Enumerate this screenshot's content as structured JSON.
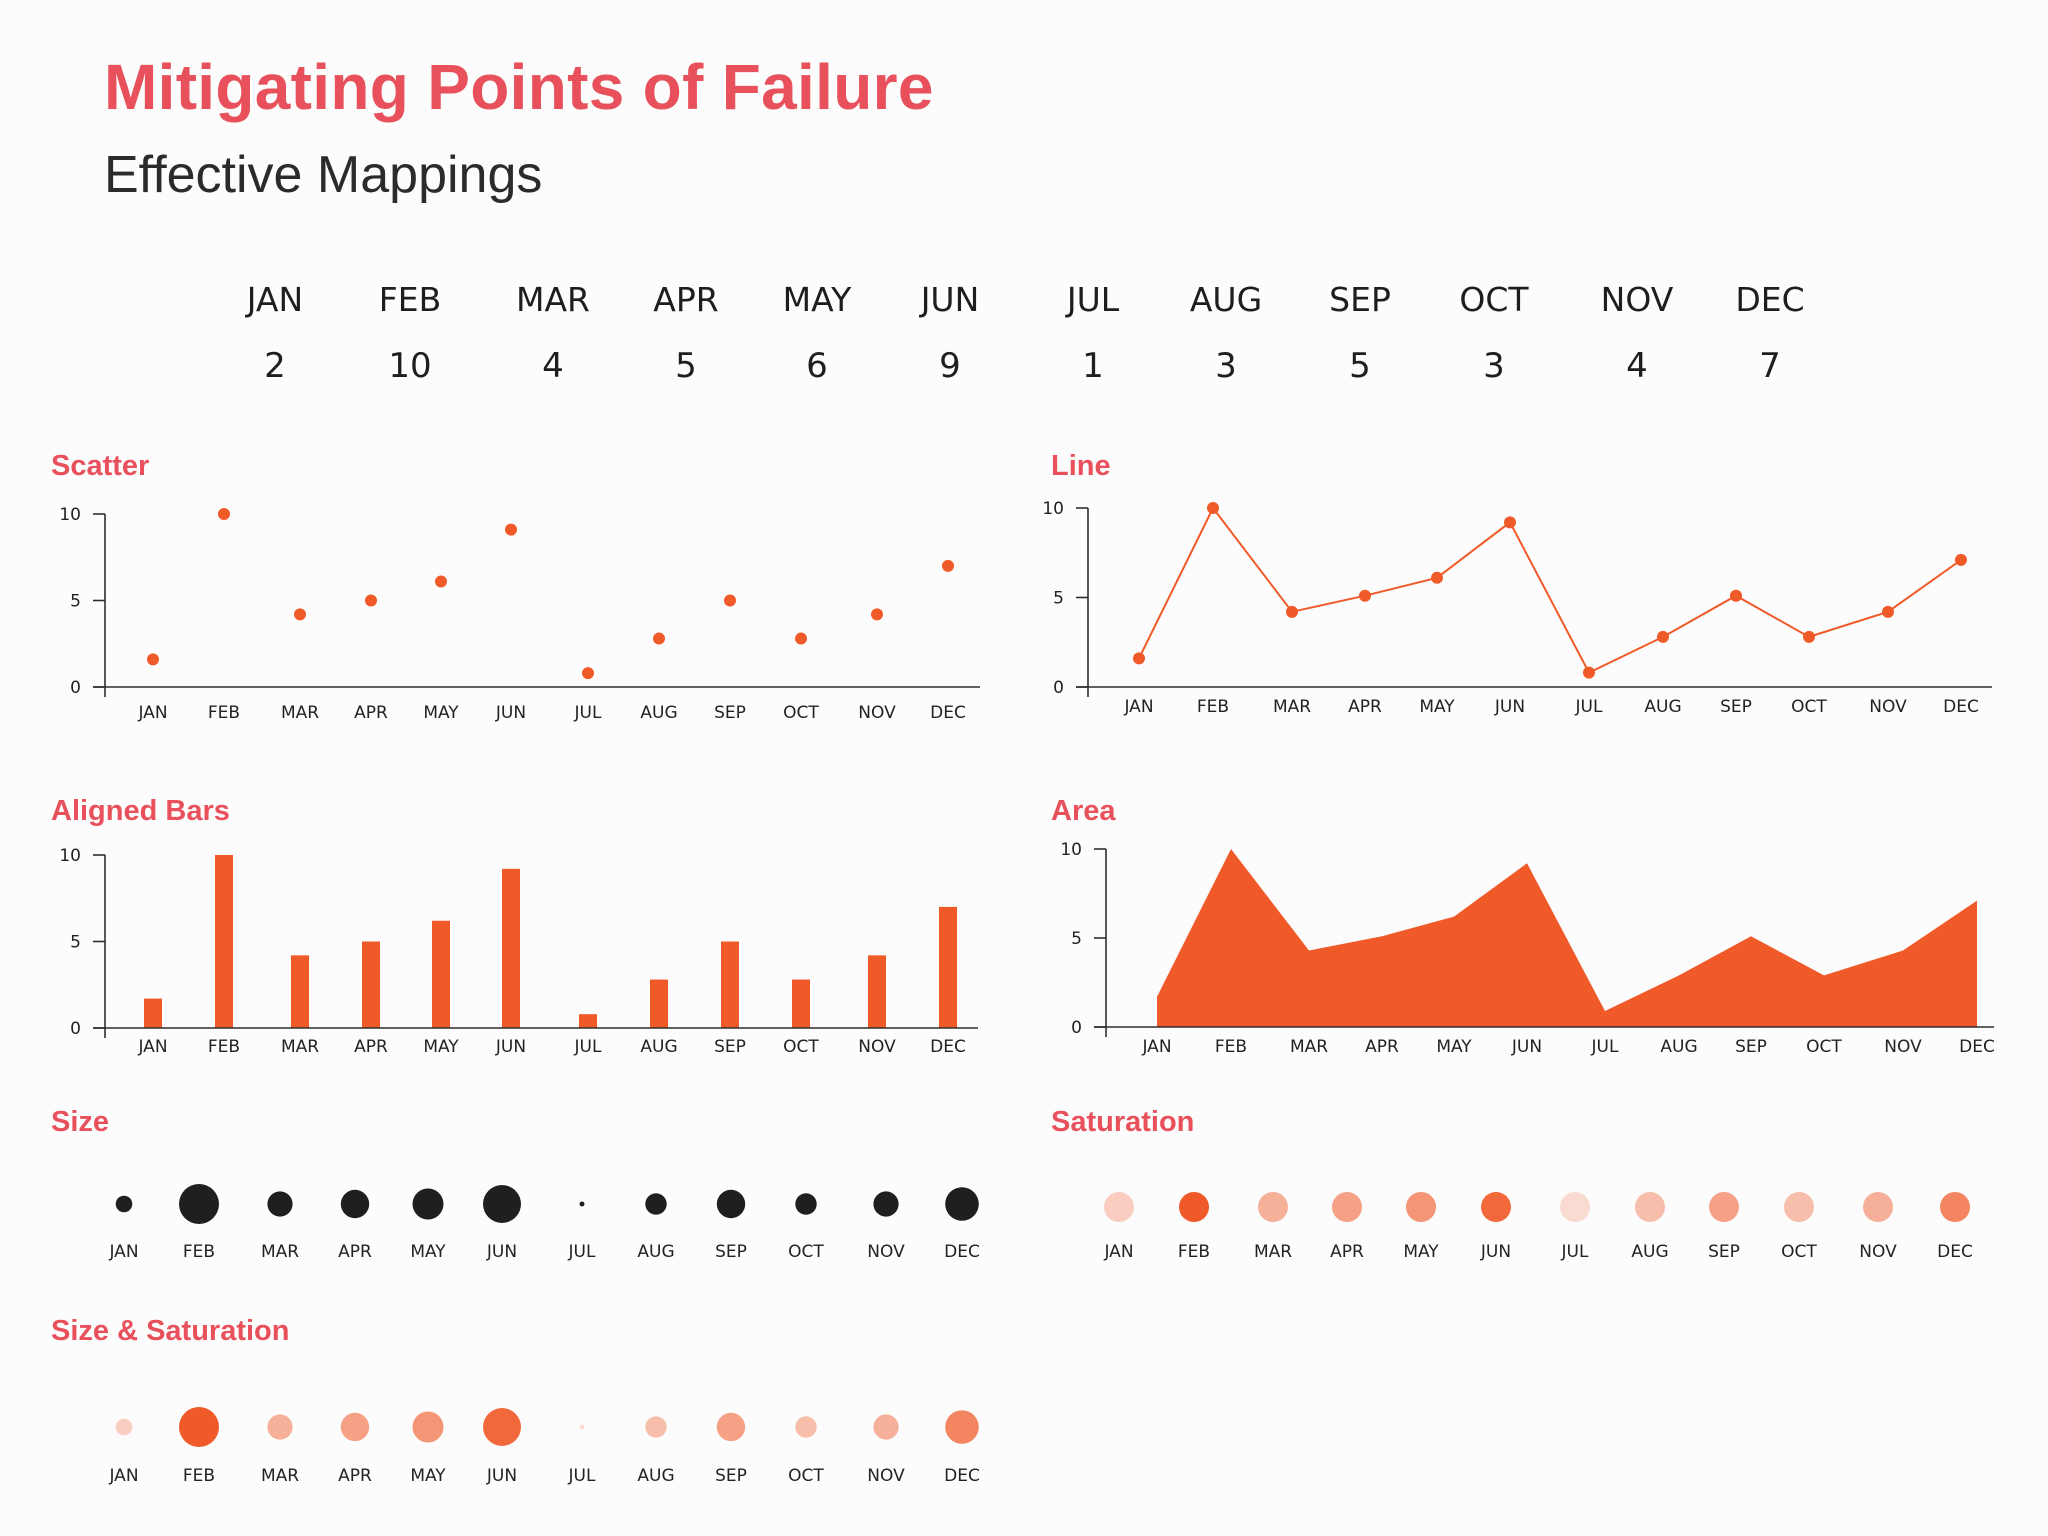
{
  "header": {
    "title": "Mitigating Points of Failure",
    "subtitle": "Effective Mappings"
  },
  "months": [
    "JAN",
    "FEB",
    "MAR",
    "APR",
    "MAY",
    "JUN",
    "JUL",
    "AUG",
    "SEP",
    "OCT",
    "NOV",
    "DEC"
  ],
  "values": [
    "2",
    "10",
    "4",
    "5",
    "6",
    "9",
    "1",
    "3",
    "5",
    "3",
    "4",
    "7"
  ],
  "colors": {
    "accent": "#f05a28",
    "title": "#e8515b",
    "dark": "#1f1f1f",
    "axis": "#2e2e2e"
  },
  "chart_data": [
    {
      "id": "scatter",
      "type": "scatter",
      "title": "Scatter",
      "categories": [
        "JAN",
        "FEB",
        "MAR",
        "APR",
        "MAY",
        "JUN",
        "JUL",
        "AUG",
        "SEP",
        "OCT",
        "NOV",
        "DEC"
      ],
      "values": [
        1.6,
        10,
        4.2,
        5,
        6.1,
        9.1,
        0.8,
        2.8,
        5,
        2.8,
        4.2,
        7
      ],
      "ylim": [
        0,
        10
      ],
      "yticks": [
        "0",
        "5",
        "10"
      ]
    },
    {
      "id": "line",
      "type": "line",
      "title": "Line",
      "categories": [
        "JAN",
        "FEB",
        "MAR",
        "APR",
        "MAY",
        "JUN",
        "JUL",
        "AUG",
        "SEP",
        "OCT",
        "NOV",
        "DEC"
      ],
      "values": [
        1.6,
        10,
        4.2,
        5.1,
        6.1,
        9.2,
        0.8,
        2.8,
        5.1,
        2.8,
        4.2,
        7.1
      ],
      "ylim": [
        0,
        10
      ],
      "yticks": [
        "0",
        "5",
        "10"
      ]
    },
    {
      "id": "bars",
      "type": "bar",
      "title": "Aligned Bars",
      "categories": [
        "JAN",
        "FEB",
        "MAR",
        "APR",
        "MAY",
        "JUN",
        "JUL",
        "AUG",
        "SEP",
        "OCT",
        "NOV",
        "DEC"
      ],
      "values": [
        1.7,
        10,
        4.2,
        5,
        6.2,
        9.2,
        0.8,
        2.8,
        5,
        2.8,
        4.2,
        7
      ],
      "ylim": [
        0,
        10
      ],
      "yticks": [
        "0",
        "5",
        "10"
      ]
    },
    {
      "id": "area",
      "type": "area",
      "title": "Area",
      "categories": [
        "JAN",
        "FEB",
        "MAR",
        "APR",
        "MAY",
        "JUN",
        "JUL",
        "AUG",
        "SEP",
        "OCT",
        "NOV",
        "DEC"
      ],
      "values": [
        1.7,
        10,
        4.3,
        5.1,
        6.2,
        9.2,
        0.9,
        2.9,
        5.1,
        2.9,
        4.3,
        7.1
      ],
      "ylim": [
        0,
        10
      ],
      "yticks": [
        "0",
        "5",
        "10"
      ]
    },
    {
      "id": "size",
      "type": "bubble-size",
      "title": "Size",
      "categories": [
        "JAN",
        "FEB",
        "MAR",
        "APR",
        "MAY",
        "JUN",
        "JUL",
        "AUG",
        "SEP",
        "OCT",
        "NOV",
        "DEC"
      ],
      "values": [
        2,
        10,
        4,
        5,
        6,
        9,
        1,
        3,
        5,
        3,
        4,
        7
      ]
    },
    {
      "id": "saturation",
      "type": "bubble-saturation",
      "title": "Saturation",
      "categories": [
        "JAN",
        "FEB",
        "MAR",
        "APR",
        "MAY",
        "JUN",
        "JUL",
        "AUG",
        "SEP",
        "OCT",
        "NOV",
        "DEC"
      ],
      "values": [
        2,
        10,
        4,
        5,
        6,
        9,
        1,
        3,
        5,
        3,
        4,
        7
      ]
    },
    {
      "id": "sizesat",
      "type": "bubble-size-saturation",
      "title": "Size & Saturation",
      "categories": [
        "JAN",
        "FEB",
        "MAR",
        "APR",
        "MAY",
        "JUN",
        "JUL",
        "AUG",
        "SEP",
        "OCT",
        "NOV",
        "DEC"
      ],
      "values": [
        2,
        10,
        4,
        5,
        6,
        9,
        1,
        3,
        5,
        3,
        4,
        7
      ]
    }
  ]
}
